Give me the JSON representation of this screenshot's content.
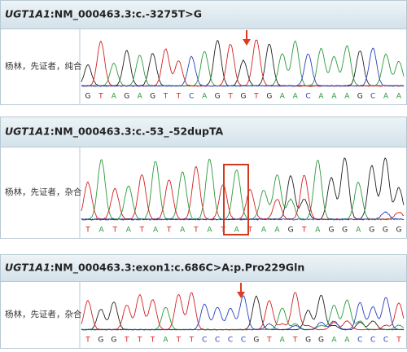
{
  "panels": [
    {
      "gene": "UGT1A1",
      "variant": ":NM_000463.3:c.-3275T>G",
      "label": "杨林，先证者，纯合",
      "sequence": [
        "G",
        "T",
        "A",
        "G",
        "A",
        "G",
        "T",
        "T",
        "C",
        "A",
        "G",
        "T",
        "G",
        "T",
        "G",
        "A",
        "A",
        "C",
        "A",
        "A",
        "A",
        "G",
        "C",
        "A",
        "A"
      ]
    },
    {
      "gene": "UGT1A1",
      "variant": ":NM_000463.3:c.-53_-52dupTA",
      "label": "杨林，先证者，杂合",
      "sequence": [
        "T",
        "A",
        "T",
        "A",
        "T",
        "A",
        "T",
        "A",
        "T",
        "A",
        "T",
        "A",
        "T",
        "A",
        "A",
        "G",
        "T",
        "A",
        "G",
        "G",
        "A",
        "G",
        "G",
        "G"
      ]
    },
    {
      "gene": "UGT1A1",
      "variant": ":NM_000463.3:exon1:c.686C>A:p.Pro229Gln",
      "label": "杨林，先证者，杂合",
      "sequence": [
        "T",
        "G",
        "G",
        "T",
        "T",
        "T",
        "A",
        "T",
        "T",
        "C",
        "C",
        "C",
        "C",
        "G",
        "T",
        "A",
        "T",
        "G",
        "G",
        "A",
        "A",
        "C",
        "C",
        "C",
        "T"
      ]
    }
  ]
}
